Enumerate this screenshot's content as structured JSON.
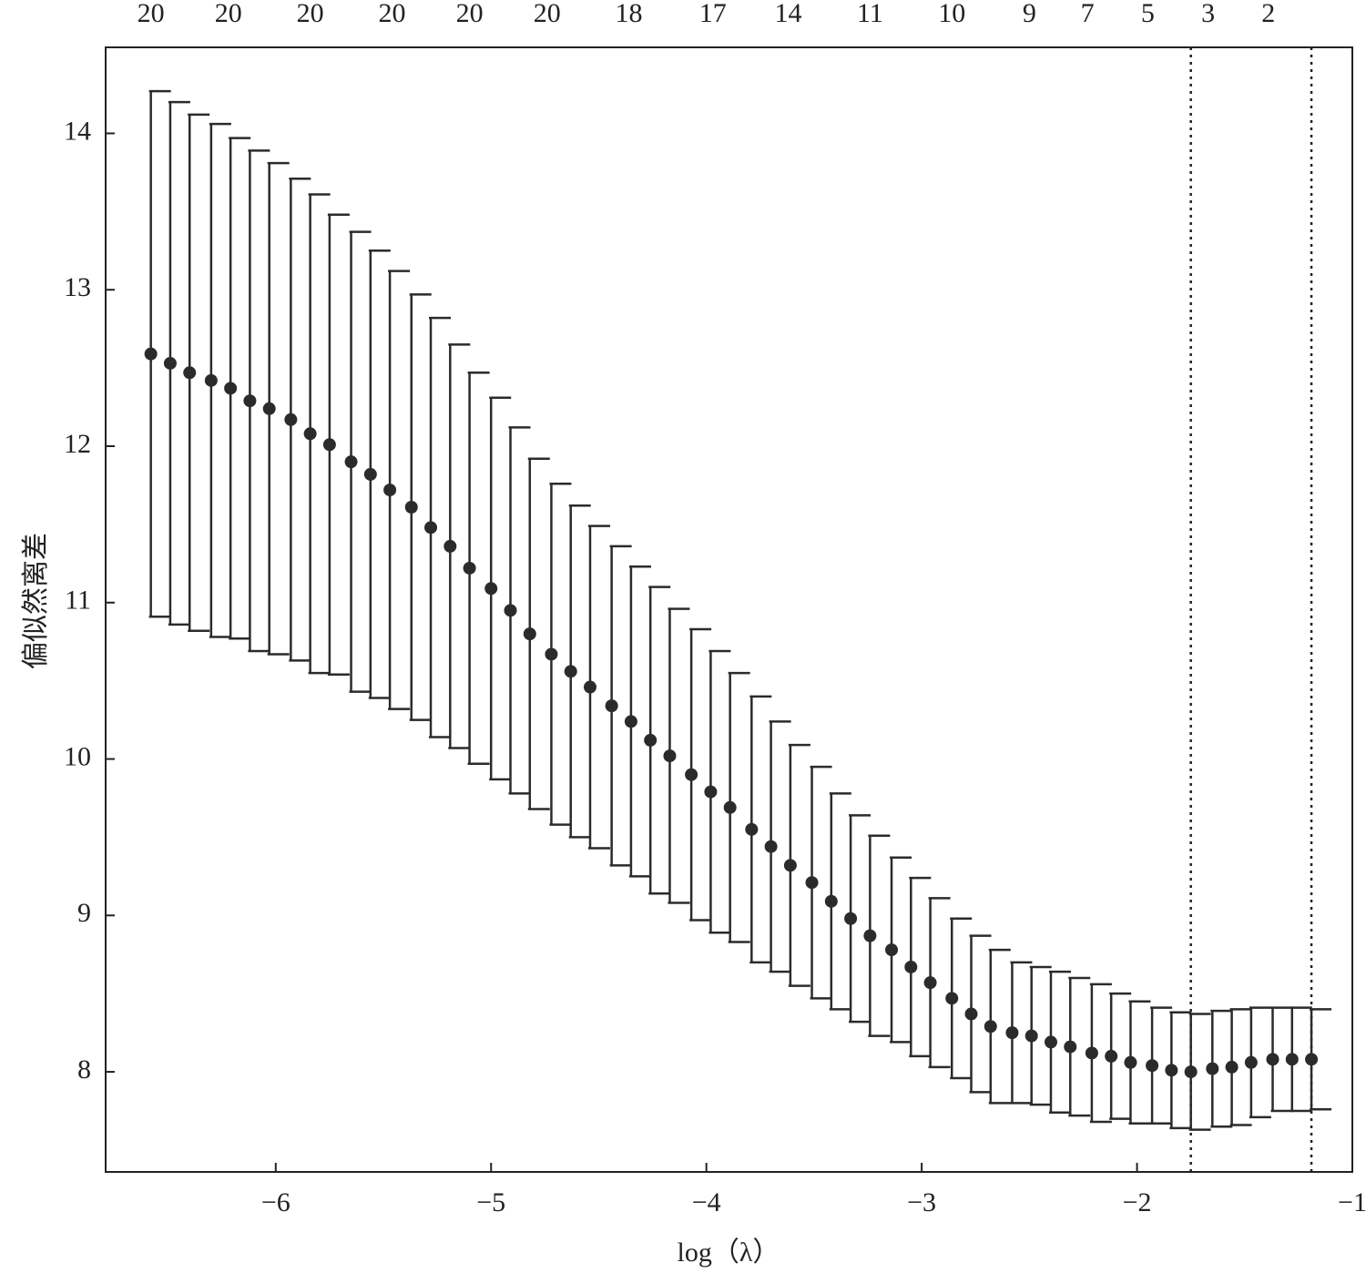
{
  "chart_data": {
    "type": "errorbar",
    "xlabel": "log（λ）",
    "ylabel": "偏似然离差",
    "x": [
      -6.58,
      -6.49,
      -6.4,
      -6.3,
      -6.21,
      -6.12,
      -6.03,
      -5.93,
      -5.84,
      -5.75,
      -5.65,
      -5.56,
      -5.47,
      -5.37,
      -5.28,
      -5.19,
      -5.1,
      -5.0,
      -4.91,
      -4.82,
      -4.72,
      -4.63,
      -4.54,
      -4.44,
      -4.35,
      -4.26,
      -4.17,
      -4.07,
      -3.98,
      -3.89,
      -3.79,
      -3.7,
      -3.61,
      -3.51,
      -3.42,
      -3.33,
      -3.24,
      -3.14,
      -3.05,
      -2.96,
      -2.86,
      -2.77,
      -2.68,
      -2.58,
      -2.49,
      -2.4,
      -2.31,
      -2.21,
      -2.12,
      -2.03,
      -1.93,
      -1.84,
      -1.75,
      -1.65,
      -1.56,
      -1.47,
      -1.37,
      -1.28,
      -1.19
    ],
    "values": [
      12.59,
      12.53,
      12.47,
      12.42,
      12.37,
      12.29,
      12.24,
      12.17,
      12.08,
      12.01,
      11.9,
      11.82,
      11.72,
      11.61,
      11.48,
      11.36,
      11.22,
      11.09,
      10.95,
      10.8,
      10.67,
      10.56,
      10.46,
      10.34,
      10.24,
      10.12,
      10.02,
      9.9,
      9.79,
      9.69,
      9.55,
      9.44,
      9.32,
      9.21,
      9.09,
      8.98,
      8.87,
      8.78,
      8.67,
      8.57,
      8.47,
      8.37,
      8.29,
      8.25,
      8.23,
      8.19,
      8.16,
      8.12,
      8.1,
      8.06,
      8.04,
      8.01,
      8.0,
      8.02,
      8.03,
      8.06,
      8.08,
      8.08,
      8.08
    ],
    "errors": [
      1.68,
      1.67,
      1.65,
      1.64,
      1.6,
      1.6,
      1.57,
      1.54,
      1.53,
      1.47,
      1.47,
      1.43,
      1.4,
      1.36,
      1.34,
      1.29,
      1.25,
      1.22,
      1.17,
      1.12,
      1.09,
      1.06,
      1.03,
      1.02,
      0.99,
      0.98,
      0.94,
      0.93,
      0.9,
      0.86,
      0.85,
      0.8,
      0.77,
      0.74,
      0.69,
      0.66,
      0.64,
      0.59,
      0.57,
      0.54,
      0.51,
      0.5,
      0.49,
      0.45,
      0.44,
      0.45,
      0.44,
      0.44,
      0.4,
      0.39,
      0.37,
      0.37,
      0.37,
      0.37,
      0.37,
      0.35,
      0.33,
      0.33,
      0.32
    ],
    "color": "#2b2b2b",
    "xlim": [
      -6.79,
      -1.0
    ],
    "ylim": [
      7.36,
      14.55
    ],
    "xticks": [
      {
        "value": -6,
        "label": "−6"
      },
      {
        "value": -5,
        "label": "−5"
      },
      {
        "value": -4,
        "label": "−4"
      },
      {
        "value": -3,
        "label": "−3"
      },
      {
        "value": -2,
        "label": "−2"
      },
      {
        "value": -1,
        "label": "−1"
      }
    ],
    "yticks": [
      8,
      9,
      10,
      11,
      12,
      13,
      14
    ],
    "top_ticks": [
      {
        "value": -6.58,
        "label": "20"
      },
      {
        "value": -6.22,
        "label": "20"
      },
      {
        "value": -5.84,
        "label": "20"
      },
      {
        "value": -5.46,
        "label": "20"
      },
      {
        "value": -5.1,
        "label": "20"
      },
      {
        "value": -4.74,
        "label": "20"
      },
      {
        "value": -4.36,
        "label": "18"
      },
      {
        "value": -3.97,
        "label": "17"
      },
      {
        "value": -3.62,
        "label": "14"
      },
      {
        "value": -3.24,
        "label": "11"
      },
      {
        "value": -2.86,
        "label": "10"
      },
      {
        "value": -2.5,
        "label": "9"
      },
      {
        "value": -2.23,
        "label": "7"
      },
      {
        "value": -1.95,
        "label": "5"
      },
      {
        "value": -1.67,
        "label": "3"
      },
      {
        "value": -1.39,
        "label": "2"
      }
    ],
    "vlines": [
      -1.75,
      -1.19
    ]
  }
}
